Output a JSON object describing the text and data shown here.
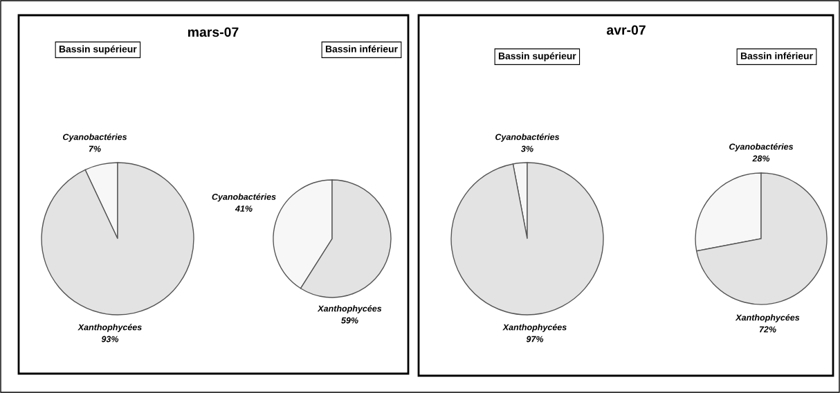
{
  "chart_data": [
    {
      "type": "pie",
      "title": "mars-07",
      "subtitle": "Bassin supérieur",
      "categories": [
        "Cyanobactéries",
        "Xanthophycées"
      ],
      "values": [
        7,
        93
      ],
      "value_labels": [
        "7%",
        "93%"
      ],
      "colors": [
        "#f7f7f7",
        "#e3e3e3"
      ]
    },
    {
      "type": "pie",
      "subtitle": "Bassin inférieur",
      "categories": [
        "Cyanobactéries",
        "Xanthophycées"
      ],
      "values": [
        41,
        59
      ],
      "value_labels": [
        "41%",
        "59%"
      ],
      "colors": [
        "#f7f7f7",
        "#e3e3e3"
      ]
    },
    {
      "type": "pie",
      "title": "avr-07",
      "subtitle": "Bassin supérieur",
      "categories": [
        "Cyanobactéries",
        "Xanthophycées"
      ],
      "values": [
        3,
        97
      ],
      "value_labels": [
        "3%",
        "97%"
      ],
      "colors": [
        "#f7f7f7",
        "#e3e3e3"
      ]
    },
    {
      "type": "pie",
      "subtitle": "Bassin inférieur",
      "categories": [
        "Cyanobactéries",
        "Xanthophycées"
      ],
      "values": [
        28,
        72
      ],
      "value_labels": [
        "28%",
        "72%"
      ],
      "colors": [
        "#f7f7f7",
        "#e3e3e3"
      ]
    }
  ]
}
